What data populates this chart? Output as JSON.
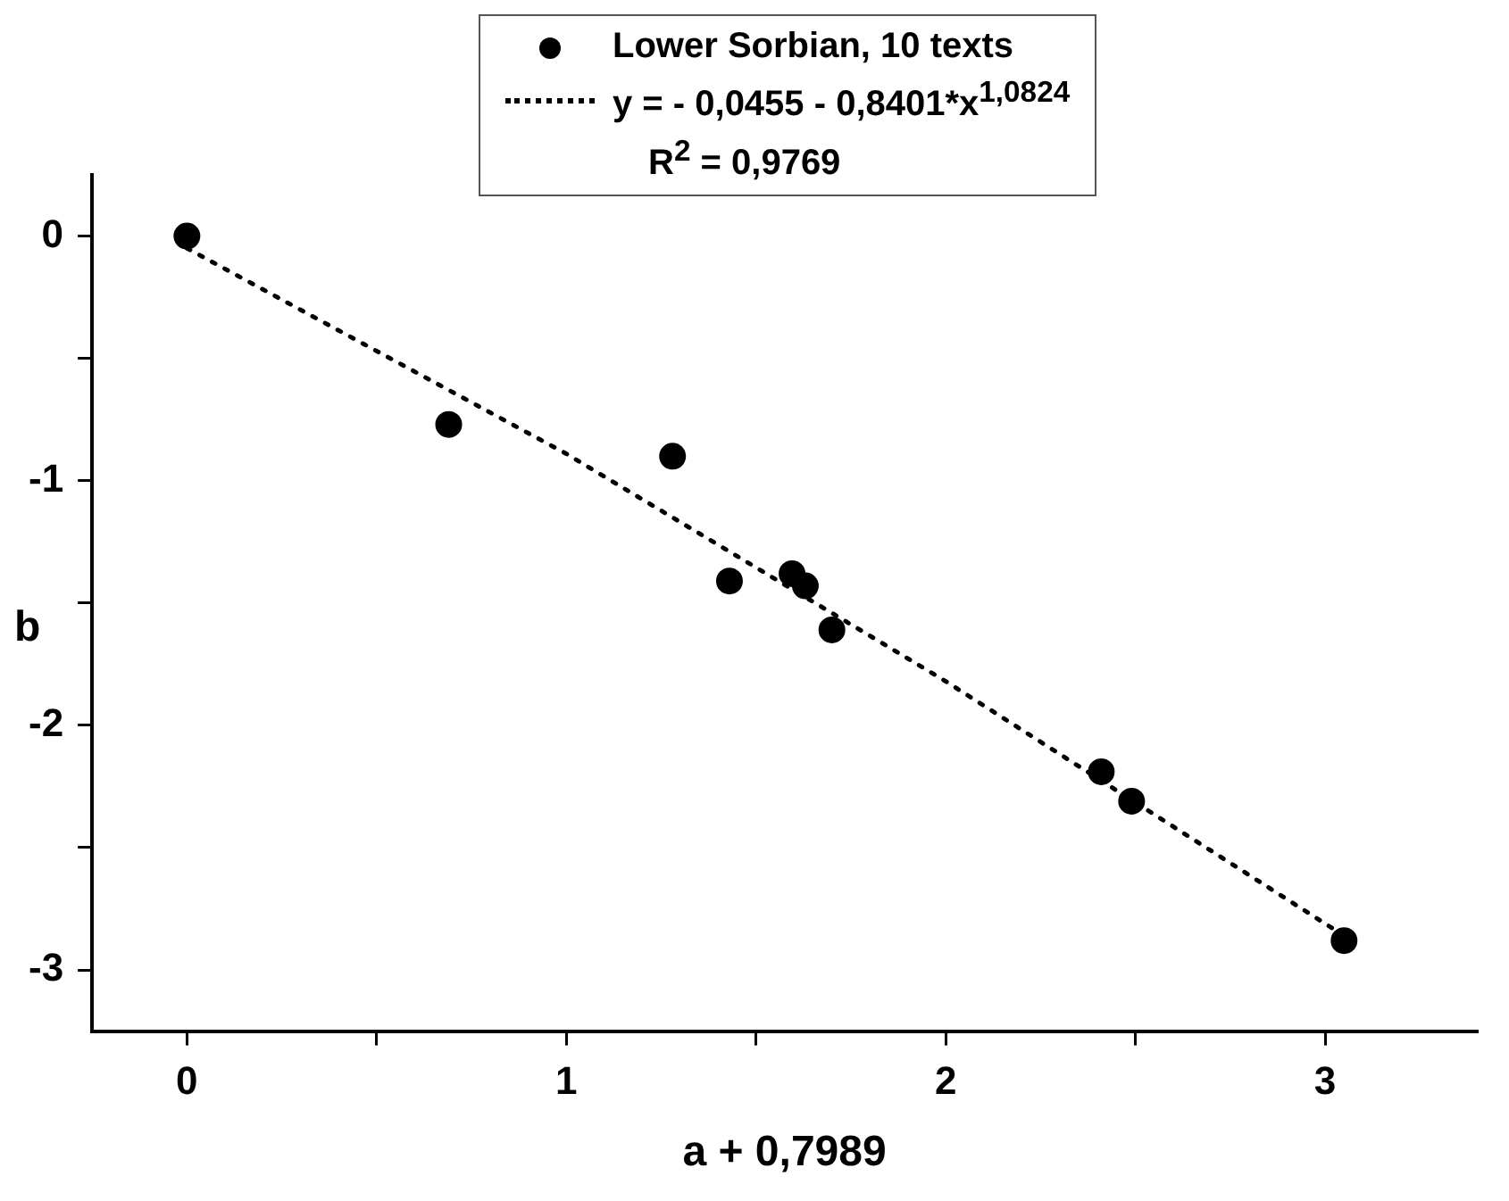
{
  "chart_data": {
    "type": "scatter",
    "xlabel": "a + 0,7989",
    "ylabel": "b",
    "xlim": [
      -0.25,
      3.4
    ],
    "ylim": [
      -3.25,
      0.25
    ],
    "xticks": [
      0,
      {
        "value": 0.5,
        "label": null
      },
      1,
      {
        "value": 1.5,
        "label": null
      },
      2,
      {
        "value": 2.5,
        "label": null
      },
      3
    ],
    "yticks": [
      -3,
      {
        "value": -2.5,
        "label": null
      },
      -2,
      {
        "value": -1.5,
        "label": null
      },
      -1,
      {
        "value": -0.5,
        "label": null
      },
      0
    ],
    "grid": false,
    "legend": "top",
    "marker": "circle",
    "series": [
      {
        "name": "Lower Sorbian, 10 texts",
        "color": "#000000",
        "x": [
          0,
          0.69,
          1.28,
          1.43,
          1.595,
          1.63,
          1.7,
          2.41,
          2.49,
          3.05
        ],
        "values": [
          0,
          -0.77,
          -0.9,
          -1.41,
          -1.38,
          -1.43,
          -1.61,
          -2.19,
          -2.31,
          -2.88
        ]
      },
      {
        "type": "line",
        "name": "y = - 0,0455 - 0,8401*x$^{1,0824}$",
        "color": "#000000",
        "line_style": "dotted",
        "marker": "none",
        "x": [
          0,
          1,
          2,
          3.05
        ],
        "values": [
          -0.05,
          -0.89,
          -1.82,
          -2.86
        ]
      }
    ],
    "annotations": [
      "R$^{2}$ = 0,9769"
    ]
  }
}
